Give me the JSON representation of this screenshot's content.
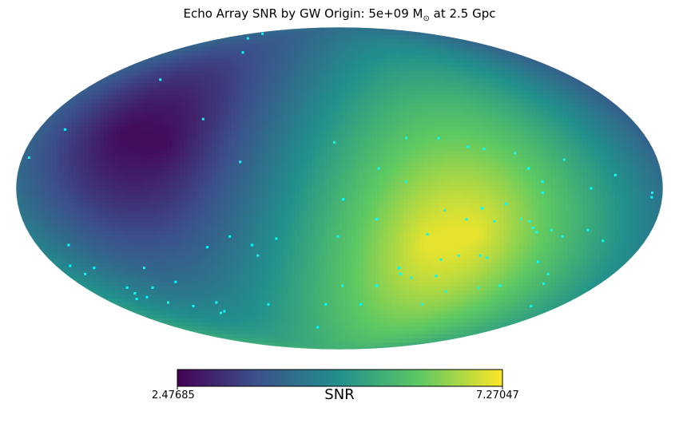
{
  "chart_data": {
    "type": "heatmap",
    "projection": "mollweide",
    "title_prefix": "Echo Array SNR by GW Origin: 5e+09 M",
    "title_suffix": " at 2.5 Gpc",
    "title_symbol": "⊙",
    "colorbar": {
      "label": "SNR",
      "min": 2.47685,
      "max": 7.27047,
      "min_text": "2.47685",
      "max_text": "7.27047",
      "colormap": "viridis"
    },
    "peak": {
      "lon_deg": -80,
      "lat_deg": -20,
      "value": 7.27
    },
    "trough": {
      "lon_deg": 130,
      "lat_deg": 25,
      "value": 2.48
    },
    "markers": {
      "color": "#00ffff",
      "points": [
        [
          152,
          82
        ],
        [
          139,
          78
        ],
        [
          100,
          68
        ],
        [
          135,
          52
        ],
        [
          84,
          32
        ],
        [
          164,
          27
        ],
        [
          176,
          14
        ],
        [
          56,
          12
        ],
        [
          3,
          21
        ],
        [
          -2,
          -5
        ],
        [
          -22,
          9
        ],
        [
          -21,
          -14
        ],
        [
          -37,
          3
        ],
        [
          -39,
          23
        ],
        [
          -58,
          23
        ],
        [
          -74,
          19
        ],
        [
          -83,
          18
        ],
        [
          -100,
          16
        ],
        [
          -106,
          9
        ],
        [
          -113,
          3
        ],
        [
          -127,
          13
        ],
        [
          -113,
          -2
        ],
        [
          -140,
          0
        ],
        [
          -154,
          6
        ],
        [
          -174,
          -2
        ],
        [
          -174,
          -4
        ],
        [
          -59,
          -10
        ],
        [
          -72,
          -14
        ],
        [
          -80,
          -9
        ],
        [
          -88,
          -15
        ],
        [
          -93,
          -7
        ],
        [
          -103,
          -14
        ],
        [
          -108,
          -15
        ],
        [
          -111,
          -18
        ],
        [
          -114,
          -20
        ],
        [
          -122,
          -19
        ],
        [
          -130,
          -22
        ],
        [
          -143,
          -19
        ],
        [
          -155,
          -24
        ],
        [
          -63,
          -33
        ],
        [
          -73,
          -31
        ],
        [
          -86,
          -31
        ],
        [
          -91,
          -32
        ],
        [
          -64,
          -41
        ],
        [
          -40,
          -40
        ],
        [
          -38,
          -37
        ],
        [
          -48,
          -42
        ],
        [
          -66,
          -56
        ],
        [
          -77,
          -49
        ],
        [
          -98,
          -47
        ],
        [
          -112,
          -46
        ],
        [
          -124,
          -34
        ],
        [
          -137,
          -40
        ],
        [
          -141,
          -45
        ],
        [
          -156,
          -57
        ],
        [
          -51,
          -21
        ],
        [
          -26,
          -46
        ],
        [
          -17,
          -56
        ],
        [
          -2,
          -46
        ],
        [
          11,
          -56
        ],
        [
          1,
          -22
        ],
        [
          64,
          -22
        ],
        [
          37,
          -23
        ],
        [
          50,
          -31
        ],
        [
          52,
          -26
        ],
        [
          97,
          -55
        ],
        [
          99,
          -60
        ],
        [
          104,
          -61
        ],
        [
          119,
          -57
        ],
        [
          135,
          -55
        ],
        [
          145,
          -52
        ],
        [
          150,
          -47
        ],
        [
          157,
          -37
        ],
        [
          161,
          -26
        ],
        [
          171,
          -36
        ],
        [
          167,
          -40
        ],
        [
          155,
          -53
        ],
        [
          150,
          -50
        ],
        [
          132,
          -47
        ],
        [
          125,
          -37
        ],
        [
          112,
          -44
        ],
        [
          57,
          -56
        ],
        [
          24,
          -70
        ],
        [
          79,
          -27
        ]
      ]
    }
  }
}
